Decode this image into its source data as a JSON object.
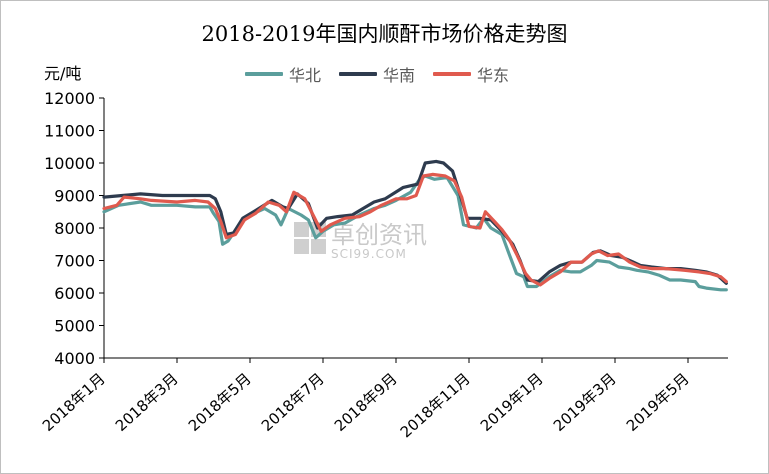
{
  "chart_data": {
    "type": "line",
    "title": "2018-2019年国内顺酐市场价格走势图",
    "ylabel": "元/吨",
    "ylim": [
      4000,
      12000
    ],
    "yticks": [
      4000,
      5000,
      6000,
      7000,
      8000,
      9000,
      10000,
      11000,
      12000
    ],
    "x_tick_labels": [
      "2018年1月",
      "2018年3月",
      "2018年5月",
      "2018年7月",
      "2018年9月",
      "2018年11月",
      "2019年1月",
      "2019年3月",
      "2019年5月"
    ],
    "grid": false,
    "legend_position": "top",
    "watermark": {
      "cn": "卓创资讯",
      "en": "SCI99.COM"
    },
    "series": [
      {
        "name": "华北",
        "color": "#5b9e9c",
        "points": [
          [
            0,
            8500
          ],
          [
            0.4,
            8700
          ],
          [
            1,
            8800
          ],
          [
            1.3,
            8700
          ],
          [
            2,
            8700
          ],
          [
            2.5,
            8650
          ],
          [
            2.9,
            8650
          ],
          [
            3,
            8450
          ],
          [
            3.15,
            8200
          ],
          [
            3.25,
            7500
          ],
          [
            3.4,
            7600
          ],
          [
            3.7,
            8100
          ],
          [
            4,
            8400
          ],
          [
            4.4,
            8600
          ],
          [
            4.7,
            8400
          ],
          [
            4.85,
            8100
          ],
          [
            5.05,
            8600
          ],
          [
            5.4,
            8400
          ],
          [
            5.6,
            8250
          ],
          [
            5.8,
            7700
          ],
          [
            6,
            7900
          ],
          [
            6.3,
            8100
          ],
          [
            6.6,
            8150
          ],
          [
            7,
            8400
          ],
          [
            7.4,
            8600
          ],
          [
            7.7,
            8700
          ],
          [
            8,
            8850
          ],
          [
            8.4,
            9100
          ],
          [
            8.65,
            9500
          ],
          [
            8.8,
            9600
          ],
          [
            9.05,
            9500
          ],
          [
            9.4,
            9550
          ],
          [
            9.7,
            9000
          ],
          [
            9.85,
            8100
          ],
          [
            10.2,
            8000
          ],
          [
            10.4,
            8300
          ],
          [
            10.6,
            8000
          ],
          [
            10.9,
            7800
          ],
          [
            11.1,
            7200
          ],
          [
            11.3,
            6600
          ],
          [
            11.5,
            6500
          ],
          [
            11.6,
            6200
          ],
          [
            11.85,
            6200
          ],
          [
            12.2,
            6500
          ],
          [
            12.5,
            6700
          ],
          [
            12.8,
            6650
          ],
          [
            13.05,
            6650
          ],
          [
            13.35,
            6850
          ],
          [
            13.5,
            7000
          ],
          [
            13.85,
            6950
          ],
          [
            14.1,
            6800
          ],
          [
            14.4,
            6750
          ],
          [
            14.6,
            6700
          ],
          [
            14.9,
            6650
          ],
          [
            15.2,
            6550
          ],
          [
            15.5,
            6400
          ],
          [
            15.8,
            6400
          ],
          [
            16.2,
            6350
          ],
          [
            16.3,
            6200
          ],
          [
            16.5,
            6150
          ],
          [
            16.9,
            6100
          ],
          [
            17.05,
            6100
          ]
        ]
      },
      {
        "name": "华南",
        "color": "#2e3b4e",
        "points": [
          [
            0,
            8950
          ],
          [
            0.5,
            9000
          ],
          [
            1,
            9050
          ],
          [
            1.6,
            9000
          ],
          [
            2,
            9000
          ],
          [
            2.6,
            9000
          ],
          [
            2.9,
            9000
          ],
          [
            3.05,
            8900
          ],
          [
            3.2,
            8500
          ],
          [
            3.35,
            7800
          ],
          [
            3.55,
            7850
          ],
          [
            3.8,
            8300
          ],
          [
            4.1,
            8500
          ],
          [
            4.6,
            8850
          ],
          [
            4.9,
            8650
          ],
          [
            5.05,
            8600
          ],
          [
            5.3,
            9050
          ],
          [
            5.6,
            8750
          ],
          [
            5.85,
            8000
          ],
          [
            6.1,
            8300
          ],
          [
            6.4,
            8350
          ],
          [
            6.8,
            8400
          ],
          [
            7.1,
            8600
          ],
          [
            7.4,
            8800
          ],
          [
            7.7,
            8900
          ],
          [
            8.2,
            9250
          ],
          [
            8.6,
            9350
          ],
          [
            8.8,
            10000
          ],
          [
            9.1,
            10050
          ],
          [
            9.3,
            10000
          ],
          [
            9.55,
            9750
          ],
          [
            9.75,
            9050
          ],
          [
            9.95,
            8300
          ],
          [
            10.3,
            8300
          ],
          [
            10.6,
            8250
          ],
          [
            10.9,
            7900
          ],
          [
            11.2,
            7500
          ],
          [
            11.4,
            7000
          ],
          [
            11.6,
            6400
          ],
          [
            11.9,
            6350
          ],
          [
            12.2,
            6650
          ],
          [
            12.5,
            6850
          ],
          [
            12.8,
            6950
          ],
          [
            13.1,
            6950
          ],
          [
            13.4,
            7250
          ],
          [
            13.6,
            7300
          ],
          [
            13.9,
            7150
          ],
          [
            14.2,
            7100
          ],
          [
            14.5,
            6950
          ],
          [
            14.7,
            6850
          ],
          [
            15,
            6800
          ],
          [
            15.4,
            6750
          ],
          [
            15.8,
            6750
          ],
          [
            16.2,
            6700
          ],
          [
            16.5,
            6650
          ],
          [
            16.8,
            6550
          ],
          [
            17.05,
            6300
          ]
        ]
      },
      {
        "name": "华东",
        "color": "#e05a4e",
        "points": [
          [
            0,
            8600
          ],
          [
            0.35,
            8700
          ],
          [
            0.55,
            8950
          ],
          [
            1,
            8900
          ],
          [
            1.3,
            8850
          ],
          [
            2,
            8800
          ],
          [
            2.5,
            8850
          ],
          [
            2.85,
            8800
          ],
          [
            3.05,
            8600
          ],
          [
            3.2,
            8200
          ],
          [
            3.35,
            7700
          ],
          [
            3.6,
            7800
          ],
          [
            3.85,
            8250
          ],
          [
            4.15,
            8450
          ],
          [
            4.5,
            8800
          ],
          [
            4.8,
            8700
          ],
          [
            5.0,
            8500
          ],
          [
            5.2,
            9100
          ],
          [
            5.5,
            8900
          ],
          [
            5.75,
            8350
          ],
          [
            5.95,
            7900
          ],
          [
            6.2,
            8100
          ],
          [
            6.6,
            8300
          ],
          [
            7.0,
            8350
          ],
          [
            7.3,
            8500
          ],
          [
            7.6,
            8700
          ],
          [
            8.0,
            8900
          ],
          [
            8.3,
            8900
          ],
          [
            8.55,
            9000
          ],
          [
            8.75,
            9600
          ],
          [
            9.0,
            9650
          ],
          [
            9.35,
            9600
          ],
          [
            9.6,
            9450
          ],
          [
            9.8,
            8950
          ],
          [
            10.0,
            8050
          ],
          [
            10.3,
            8000
          ],
          [
            10.45,
            8500
          ],
          [
            10.7,
            8200
          ],
          [
            10.9,
            7950
          ],
          [
            11.1,
            7650
          ],
          [
            11.3,
            7200
          ],
          [
            11.55,
            6600
          ],
          [
            11.7,
            6400
          ],
          [
            11.95,
            6250
          ],
          [
            12.2,
            6450
          ],
          [
            12.5,
            6650
          ],
          [
            12.8,
            6950
          ],
          [
            13.1,
            6950
          ],
          [
            13.35,
            7200
          ],
          [
            13.55,
            7300
          ],
          [
            13.8,
            7150
          ],
          [
            14.1,
            7200
          ],
          [
            14.4,
            6950
          ],
          [
            14.7,
            6800
          ],
          [
            15,
            6750
          ],
          [
            15.4,
            6750
          ],
          [
            15.9,
            6700
          ],
          [
            16.3,
            6650
          ],
          [
            16.6,
            6600
          ],
          [
            16.9,
            6500
          ],
          [
            17.05,
            6350
          ]
        ]
      }
    ]
  }
}
